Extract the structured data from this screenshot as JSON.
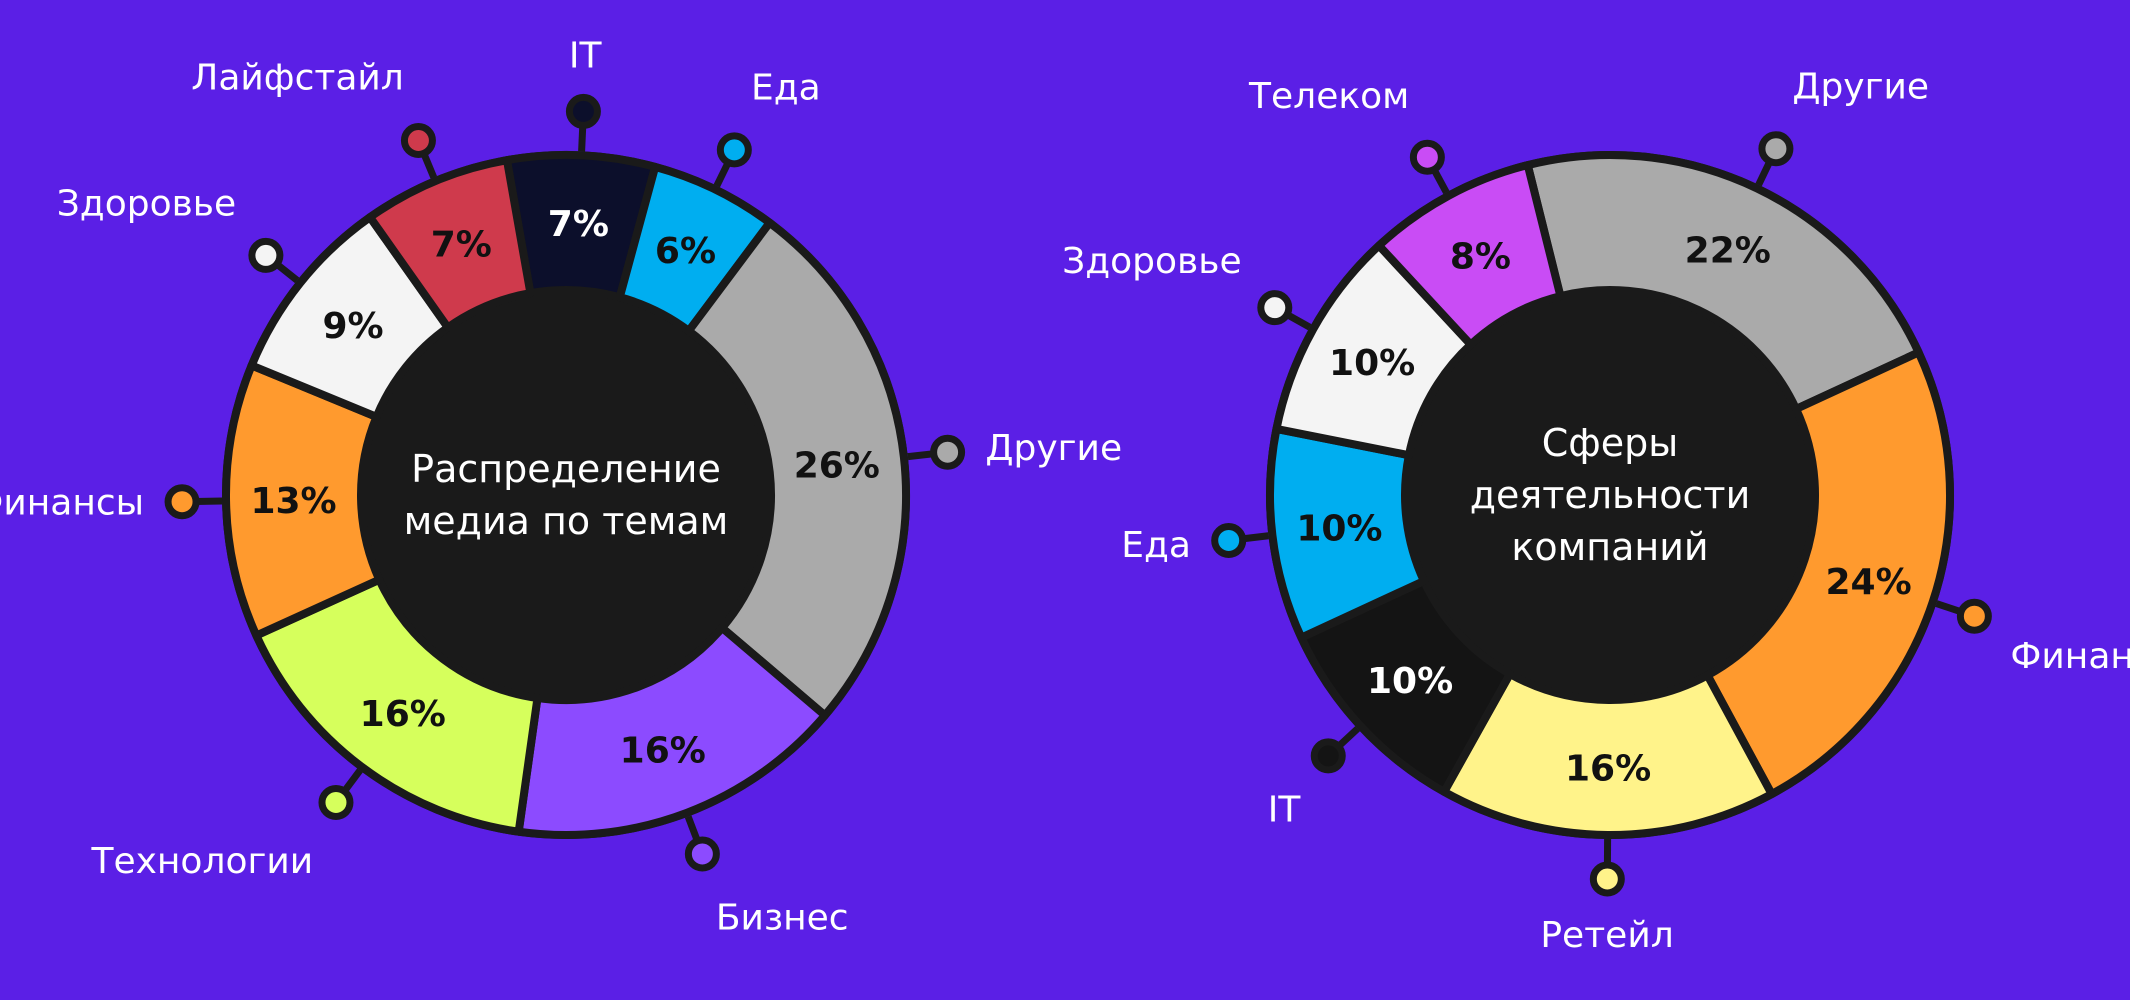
{
  "colors": {
    "background": "#5b1fe6",
    "outline": "#1a1a1a"
  },
  "chart_data": [
    {
      "type": "pie",
      "title": "Распределение медиа по темам",
      "title_lines": [
        "Распределение",
        "медиа по темам"
      ],
      "start_angle_deg": 80,
      "unit": "%",
      "slices": [
        {
          "label": "IT",
          "value": 7,
          "color": "#0c0f2b",
          "text_color": "#ffffff"
        },
        {
          "label": "Еда",
          "value": 6,
          "color": "#00aef0",
          "text_color": "#111111"
        },
        {
          "label": "Другие",
          "value": 26,
          "color": "#aaaaaa",
          "text_color": "#111111"
        },
        {
          "label": "Бизнес",
          "value": 16,
          "color": "#8c4bff",
          "text_color": "#111111"
        },
        {
          "label": "Технологии",
          "value": 16,
          "color": "#d6ff5c",
          "text_color": "#111111"
        },
        {
          "label": "Финансы",
          "value": 13,
          "color": "#ff9a2e",
          "text_color": "#111111"
        },
        {
          "label": "Здоровье",
          "value": 9,
          "color": "#f4f4f4",
          "text_color": "#111111"
        },
        {
          "label": "Лайфстайл",
          "value": 7,
          "color": "#cf3a4c",
          "text_color": "#111111"
        }
      ]
    },
    {
      "type": "pie",
      "title": "Сферы деятельности компаний",
      "title_lines": [
        "Сферы",
        "деятельности",
        "компаний"
      ],
      "start_angle_deg": 76,
      "unit": "%",
      "slices": [
        {
          "label": "Другие",
          "value": 22,
          "color": "#aaaaaa",
          "text_color": "#111111"
        },
        {
          "label": "Финансы",
          "value": 24,
          "color": "#ff9a2e",
          "text_color": "#111111"
        },
        {
          "label": "Ретейл",
          "value": 16,
          "color": "#fff38a",
          "text_color": "#111111"
        },
        {
          "label": "IT",
          "value": 10,
          "color": "#141414",
          "text_color": "#ffffff"
        },
        {
          "label": "Еда",
          "value": 10,
          "color": "#00aef0",
          "text_color": "#111111"
        },
        {
          "label": "Здоровье",
          "value": 10,
          "color": "#f4f4f4",
          "text_color": "#111111"
        },
        {
          "label": "Телеком",
          "value": 8,
          "color": "#c94cf5",
          "text_color": "#111111"
        }
      ]
    }
  ]
}
